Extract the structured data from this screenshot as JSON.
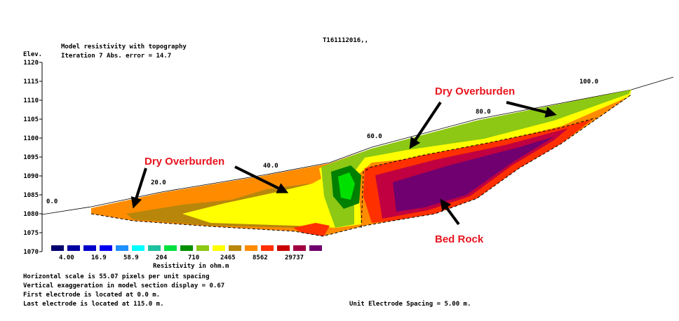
{
  "header": {
    "title": "Model resistivity with topography",
    "iteration": "Iteration 7 Abs. error = 14.7",
    "file": "T161112016,,"
  },
  "axis": {
    "label": "Elev.",
    "ticks": [
      "1120",
      "1115",
      "1110",
      "1105",
      "1100",
      "1095",
      "1090",
      "1085",
      "1080",
      "1075",
      "1070"
    ]
  },
  "distance_labels": [
    "0.0",
    "20.0",
    "40.0",
    "60.0",
    "80.0",
    "100.0"
  ],
  "legend": {
    "labels": [
      "4.00",
      "16.9",
      "58.9",
      "204",
      "710",
      "2465",
      "8562",
      "29737"
    ],
    "title": "Resistivity in ohm.m"
  },
  "notes": [
    "Horizontal scale is 55.07 pixels per unit spacing",
    "Vertical exaggeration in model section display = 0.67",
    "First electrode is located at 0.0 m.",
    "Last electrode is located at 115.0 m."
  ],
  "spacing": "Unit Electrode Spacing = 5.00 m.",
  "annotations": [
    "Dry Overburden",
    "Dry Overburden",
    "Bed Rock"
  ]
}
